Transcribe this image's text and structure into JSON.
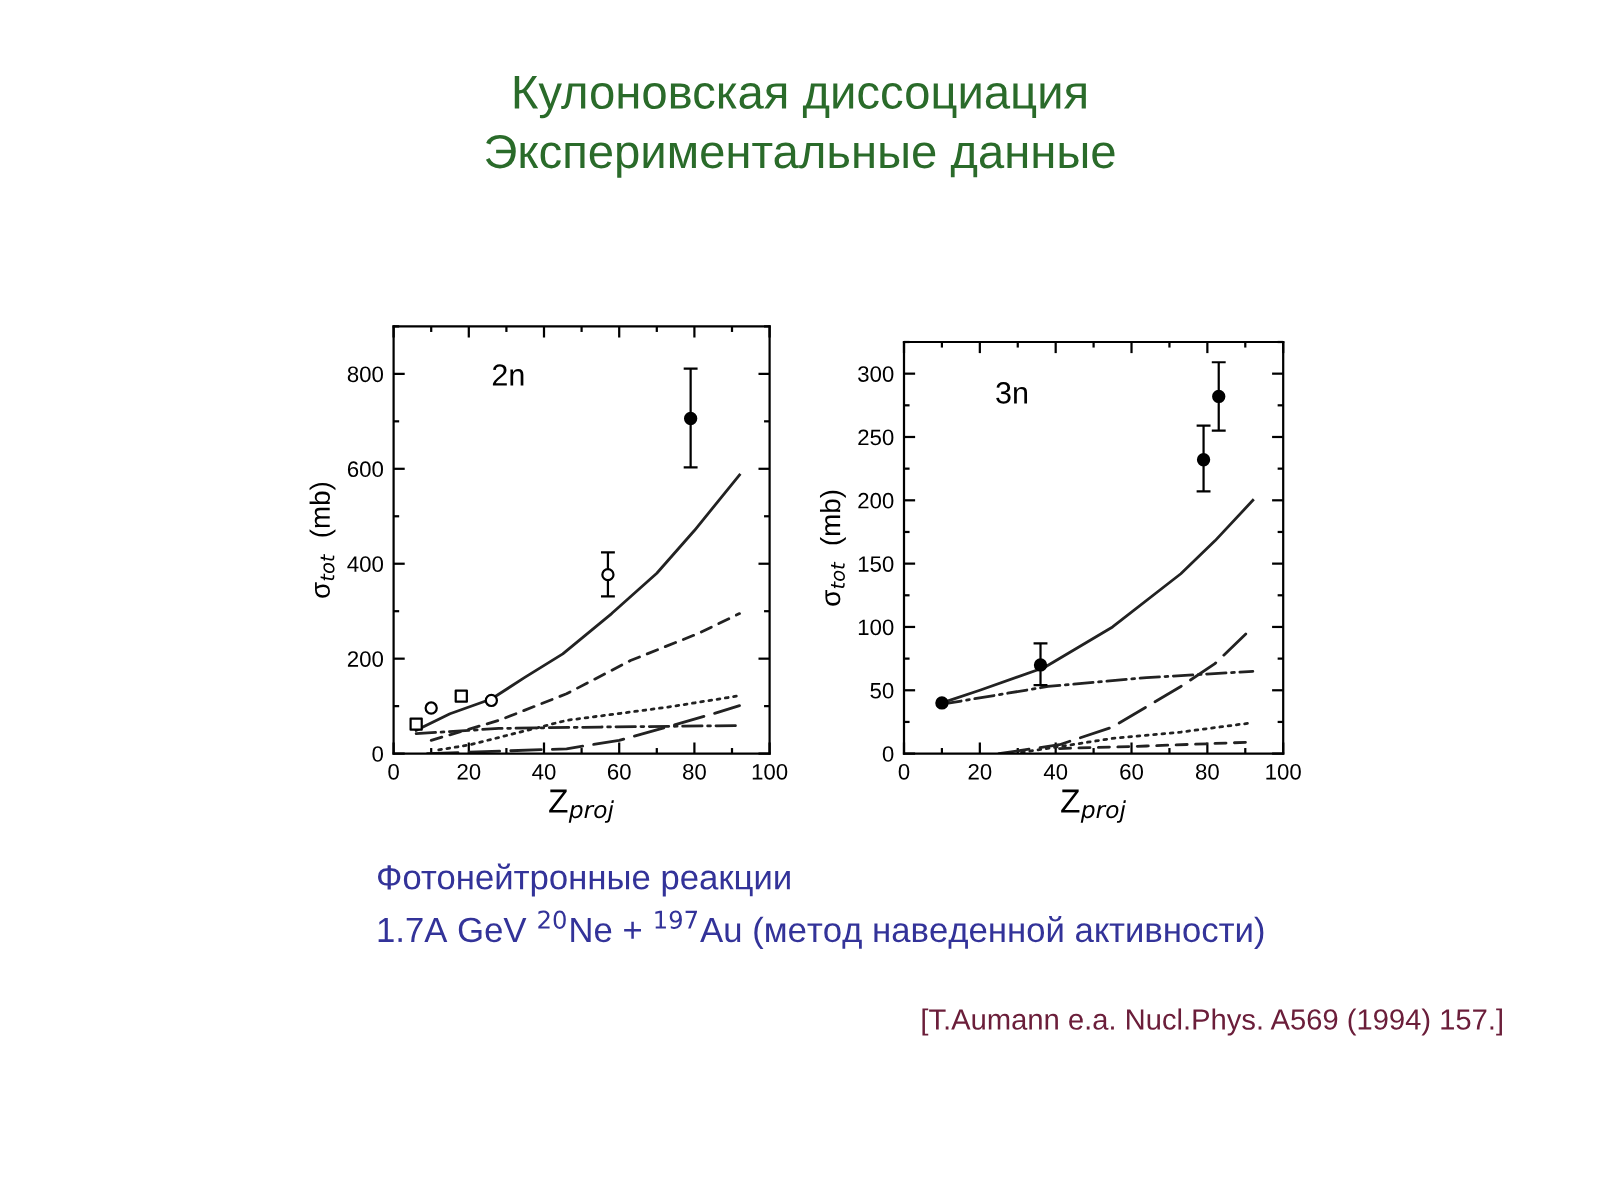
{
  "chart_data": [
    {
      "type": "scatter",
      "title": "Кулоновская диссоциация\nЭкспериментальные данные",
      "xlabel": "Z$_{proj}$",
      "ylabel": "σ$_{tot}$  (mb)",
      "xlim": [
        0,
        100
      ],
      "xticks": [
        0,
        20,
        40,
        60,
        80,
        100
      ],
      "ylim": [
        0,
        900
      ],
      "yticks": [
        0,
        200,
        400,
        600,
        800
      ],
      "grid": false,
      "legend": false,
      "annotations": [
        "2n",
        "Фотонейтронные реакции",
        "1.7A GeV $^{20}$Ne + $^{197}$Au (метод наведенной активности)"
      ],
      "series": [
        {
          "type": "line",
          "line_style": "solid",
          "color": "#222222",
          "x": [
            6,
            15,
            26,
            35,
            45,
            58,
            70,
            80,
            92
          ],
          "values": [
            49,
            84,
            115,
            161,
            210,
            295,
            380,
            470,
            587
          ]
        },
        {
          "type": "line",
          "line_style": "dashed",
          "color": "#222222",
          "x": [
            10,
            28,
            46,
            63,
            81,
            92
          ],
          "values": [
            28,
            70,
            126,
            196,
            253,
            295
          ]
        },
        {
          "type": "line",
          "line_style": "dotted",
          "color": "#222222",
          "x": [
            12,
            20,
            46,
            73,
            92
          ],
          "values": [
            8,
            18,
            70,
            98,
            122
          ]
        },
        {
          "type": "line",
          "line_style": "dashdot",
          "color": "#222222",
          "x": [
            6,
            28,
            55,
            92
          ],
          "values": [
            42,
            53,
            56,
            59
          ]
        },
        {
          "type": "line",
          "line_style": "longdash",
          "color": "#222222",
          "x": [
            9,
            46,
            60,
            74,
            85,
            92
          ],
          "values": [
            0,
            10,
            28,
            59,
            84,
            101
          ]
        },
        {
          "marker": "square",
          "color": "#ffffff",
          "x": [
            6,
            18
          ],
          "values": [
            62,
            121
          ]
        },
        {
          "marker": "circle",
          "color": "#ffffff",
          "x": [
            10,
            26,
            57
          ],
          "values": [
            96,
            112,
            377
          ],
          "errors": [
            null,
            null,
            [
              331,
              424
            ]
          ]
        },
        {
          "marker": "circle",
          "color": "#000000",
          "x": [
            79
          ],
          "values": [
            706
          ],
          "errors": [
            [
              603,
              811
            ]
          ]
        }
      ]
    },
    {
      "type": "scatter",
      "xlabel": "Z$_{proj}$",
      "ylabel": "σ$_{tot}$  (mb)",
      "xlim": [
        0,
        100
      ],
      "xticks": [
        0,
        20,
        40,
        60,
        80,
        100
      ],
      "ylim": [
        0,
        325
      ],
      "yticks": [
        0,
        50,
        100,
        150,
        200,
        250,
        300
      ],
      "grid": false,
      "legend": false,
      "annotations": [
        "3n",
        "[T.Aumann e.a. Nucl.Phys. A569 (1994) 157.]"
      ],
      "series": [
        {
          "type": "line",
          "line_style": "solid",
          "color": "#222222",
          "x": [
            10,
            20,
            37,
            55,
            73,
            82,
            92
          ],
          "values": [
            40,
            50,
            68,
            100,
            142,
            168,
            200
          ]
        },
        {
          "type": "line",
          "line_style": "dashdot",
          "color": "#222222",
          "x": [
            10,
            38,
            64,
            92
          ],
          "values": [
            39,
            53,
            60,
            65
          ]
        },
        {
          "type": "line",
          "line_style": "longdash",
          "color": "#222222",
          "x": [
            25,
            41,
            55,
            73,
            82,
            91
          ],
          "values": [
            0,
            7,
            21,
            53,
            71,
            97
          ]
        },
        {
          "type": "line",
          "line_style": "dotted",
          "color": "#222222",
          "x": [
            31,
            55,
            73,
            91
          ],
          "values": [
            1,
            12,
            17,
            24
          ]
        },
        {
          "type": "line",
          "line_style": "dashed",
          "color": "#222222",
          "x": [
            41,
            64,
            91
          ],
          "values": [
            4,
            6,
            9
          ]
        },
        {
          "marker": "circle",
          "color": "#000000",
          "x": [
            10,
            36,
            79,
            83
          ],
          "values": [
            40,
            70,
            232,
            282
          ],
          "errors": [
            null,
            [
              54,
              87
            ],
            [
              207,
              259
            ],
            [
              255,
              309
            ]
          ]
        }
      ]
    }
  ]
}
